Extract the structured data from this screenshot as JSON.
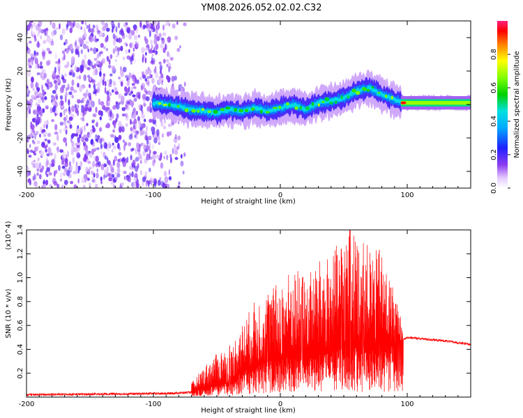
{
  "title": "YM08.2026.052.02.02.C32",
  "chart_data": [
    {
      "type": "heatmap",
      "name": "spectrogram",
      "xlabel": "Height of straight line (km)",
      "ylabel": "Frequency (Hz)",
      "xlim": [
        -200,
        150
      ],
      "ylim": [
        -50,
        50
      ],
      "xticks": [
        -200,
        -100,
        0,
        100
      ],
      "yticks": [
        -40,
        -20,
        0,
        20,
        40
      ],
      "xtick_labels": [
        "-200",
        "-100",
        "0",
        "100"
      ],
      "ytick_labels": [
        "-40",
        "-20",
        "0",
        "20",
        "40"
      ],
      "colorbar": {
        "label": "Normalized spectral amplitude",
        "range": [
          0,
          1
        ],
        "ticks": [
          0.0,
          0.2,
          0.4,
          0.6,
          0.8
        ],
        "tick_labels": [
          "0.0",
          "0.2",
          "0.4",
          "0.6",
          "0.8"
        ]
      },
      "ridge": {
        "x": [
          -100,
          -90,
          -80,
          -70,
          -60,
          -50,
          -40,
          -30,
          -20,
          -10,
          0,
          10,
          20,
          30,
          40,
          50,
          60,
          70,
          80,
          90,
          100,
          150
        ],
        "y": [
          1,
          0,
          -1,
          -3,
          -4,
          -5,
          -3,
          -4,
          -2,
          -4,
          -2,
          0,
          -3,
          1,
          2,
          4,
          8,
          10,
          6,
          3,
          1,
          1
        ]
      },
      "noise_region_x": [
        -200,
        -75
      ]
    },
    {
      "type": "line",
      "name": "snr",
      "xlabel": "Height of straight line (km)",
      "ylabel": "SNR (10 * v/v)",
      "y_multiplier": "(x10^4)",
      "xlim": [
        -200,
        150
      ],
      "ylim": [
        0,
        1.4
      ],
      "xticks": [
        -200,
        -100,
        0,
        100
      ],
      "yticks": [
        0.2,
        0.4,
        0.6,
        0.8,
        1.0,
        1.2,
        1.4
      ],
      "xtick_labels": [
        "-200",
        "-100",
        "0",
        "100"
      ],
      "ytick_labels": [
        "0.2",
        "0.4",
        "0.6",
        "0.8",
        "1.0",
        "1.2",
        "1.4"
      ],
      "color": "#ff0000",
      "envelope": {
        "x": [
          -200,
          -90,
          -70,
          -60,
          -45,
          -40,
          -35,
          -30,
          -20,
          -10,
          0,
          10,
          20,
          30,
          40,
          50,
          55,
          60,
          70,
          80,
          90,
          97,
          100,
          110,
          130,
          150
        ],
        "base": [
          0.02,
          0.03,
          0.04,
          0.08,
          0.12,
          0.1,
          0.18,
          0.22,
          0.26,
          0.3,
          0.32,
          0.35,
          0.32,
          0.36,
          0.38,
          0.42,
          0.45,
          0.44,
          0.42,
          0.4,
          0.45,
          0.48,
          0.5,
          0.49,
          0.47,
          0.44
        ],
        "amp": [
          0.01,
          0.02,
          0.08,
          0.18,
          0.3,
          0.25,
          0.35,
          0.4,
          0.55,
          0.6,
          0.65,
          0.75,
          0.7,
          0.78,
          0.82,
          0.95,
          1.0,
          0.9,
          0.85,
          0.8,
          0.45,
          0.1,
          0.02,
          0.02,
          0.02,
          0.02
        ]
      },
      "peaks": [
        {
          "x": 55,
          "y": 1.4
        },
        {
          "x": 48,
          "y": 1.24
        },
        {
          "x": 78,
          "y": 1.23
        },
        {
          "x": 65,
          "y": 1.1
        },
        {
          "x": 17,
          "y": 0.92
        },
        {
          "x": -10,
          "y": 0.75
        },
        {
          "x": -40,
          "y": 0.43
        }
      ]
    }
  ]
}
